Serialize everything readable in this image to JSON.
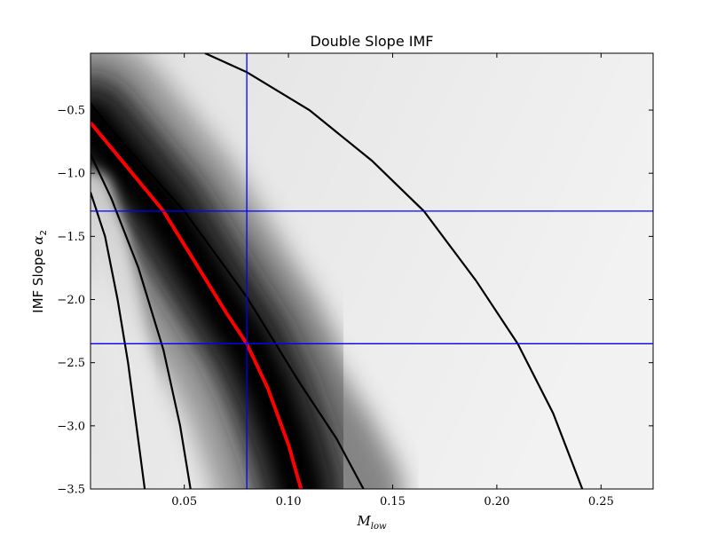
{
  "chart_data": {
    "type": "heatmap",
    "title": "Double Slope IMF",
    "xlabel": {
      "main": "M",
      "sub": "low"
    },
    "ylabel": {
      "main": "IMF Slope ",
      "sym": "α",
      "sub": "2"
    },
    "xlim": [
      0.005,
      0.275
    ],
    "ylim": [
      -3.5,
      -0.05
    ],
    "grid": false,
    "xticks": [
      0.05,
      0.1,
      0.15,
      0.2,
      0.25
    ],
    "xtick_labels": [
      "0.05",
      "0.10",
      "0.15",
      "0.20",
      "0.25"
    ],
    "yticks": [
      -0.5,
      -1.0,
      -1.5,
      -2.0,
      -2.5,
      -3.0,
      -3.5
    ],
    "ytick_labels": [
      "−0.5",
      "−1.0",
      "−1.5",
      "−2.0",
      "−2.5",
      "−3.0",
      "−3.5"
    ],
    "colormap": "greys (dark = best fit)",
    "vertical_lines": [
      {
        "x": 0.08,
        "color": "#0000ff"
      }
    ],
    "horizontal_lines": [
      {
        "y": -1.3,
        "color": "#0000ff"
      },
      {
        "y": -2.35,
        "color": "#0000ff"
      }
    ],
    "best_fit_curve": {
      "color": "#ff0000",
      "points": [
        [
          0.005,
          -0.6
        ],
        [
          0.015,
          -0.8
        ],
        [
          0.025,
          -1.0
        ],
        [
          0.04,
          -1.3
        ],
        [
          0.055,
          -1.7
        ],
        [
          0.07,
          -2.1
        ],
        [
          0.08,
          -2.35
        ],
        [
          0.09,
          -2.7
        ],
        [
          0.1,
          -3.15
        ],
        [
          0.106,
          -3.5
        ]
      ]
    },
    "contours": [
      {
        "color": "#000000",
        "points": [
          [
            0.005,
            -1.15
          ],
          [
            0.012,
            -1.5
          ],
          [
            0.018,
            -2.0
          ],
          [
            0.023,
            -2.5
          ],
          [
            0.027,
            -3.0
          ],
          [
            0.031,
            -3.5
          ]
        ]
      },
      {
        "color": "#000000",
        "points": [
          [
            0.005,
            -0.85
          ],
          [
            0.015,
            -1.2
          ],
          [
            0.028,
            -1.75
          ],
          [
            0.04,
            -2.4
          ],
          [
            0.048,
            -3.0
          ],
          [
            0.053,
            -3.5
          ]
        ]
      },
      {
        "color": "#000000",
        "points": [
          [
            0.005,
            -0.45
          ],
          [
            0.02,
            -0.75
          ],
          [
            0.05,
            -1.3
          ],
          [
            0.08,
            -1.98
          ],
          [
            0.105,
            -2.65
          ],
          [
            0.123,
            -3.1
          ],
          [
            0.136,
            -3.5
          ]
        ]
      },
      {
        "color": "#000000",
        "points": [
          [
            0.06,
            -0.05
          ],
          [
            0.08,
            -0.2
          ],
          [
            0.11,
            -0.5
          ],
          [
            0.14,
            -0.9
          ],
          [
            0.165,
            -1.3
          ],
          [
            0.19,
            -1.85
          ],
          [
            0.21,
            -2.35
          ],
          [
            0.227,
            -2.9
          ],
          [
            0.241,
            -3.5
          ]
        ]
      }
    ]
  }
}
